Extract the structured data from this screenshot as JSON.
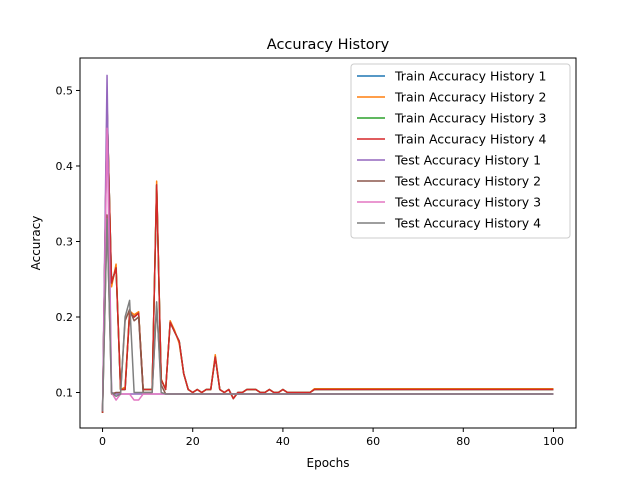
{
  "chart_data": {
    "type": "line",
    "title": "Accuracy History",
    "xlabel": "Epochs",
    "ylabel": "Accuracy",
    "xlim": [
      -5,
      105
    ],
    "ylim": [
      0.053,
      0.543
    ],
    "xticks": [
      0,
      20,
      40,
      60,
      80,
      100
    ],
    "yticks": [
      0.1,
      0.2,
      0.3,
      0.4,
      0.5
    ],
    "grid": false,
    "legend_position": "top-right",
    "series": [
      {
        "name": "Train Accuracy History 1",
        "color": "#1f77b4",
        "points": [
          [
            0,
            0.073
          ],
          [
            1,
            0.48
          ],
          [
            2,
            0.245
          ],
          [
            3,
            0.265
          ],
          [
            4,
            0.104
          ],
          [
            5,
            0.104
          ],
          [
            6,
            0.205
          ],
          [
            7,
            0.2
          ],
          [
            8,
            0.205
          ],
          [
            9,
            0.104
          ],
          [
            10,
            0.104
          ],
          [
            11,
            0.104
          ],
          [
            12,
            0.375
          ],
          [
            13,
            0.117
          ],
          [
            14,
            0.104
          ],
          [
            15,
            0.193
          ],
          [
            16,
            0.18
          ],
          [
            17,
            0.168
          ],
          [
            18,
            0.125
          ],
          [
            19,
            0.104
          ],
          [
            20,
            0.1
          ],
          [
            21,
            0.104
          ],
          [
            22,
            0.1
          ],
          [
            23,
            0.104
          ],
          [
            24,
            0.104
          ],
          [
            25,
            0.147
          ],
          [
            26,
            0.104
          ],
          [
            27,
            0.1
          ],
          [
            28,
            0.104
          ],
          [
            29,
            0.092
          ],
          [
            30,
            0.1
          ],
          [
            31,
            0.1
          ],
          [
            32,
            0.104
          ],
          [
            33,
            0.104
          ],
          [
            34,
            0.104
          ],
          [
            35,
            0.1
          ],
          [
            36,
            0.1
          ],
          [
            37,
            0.104
          ],
          [
            38,
            0.1
          ],
          [
            39,
            0.1
          ],
          [
            40,
            0.104
          ],
          [
            41,
            0.1
          ],
          [
            42,
            0.1
          ],
          [
            43,
            0.1
          ],
          [
            44,
            0.1
          ],
          [
            45,
            0.1
          ],
          [
            46,
            0.1
          ],
          [
            47,
            0.104
          ],
          [
            100,
            0.104
          ]
        ]
      },
      {
        "name": "Train Accuracy History 2",
        "color": "#ff7f0e",
        "points": [
          [
            0,
            0.073
          ],
          [
            1,
            0.485
          ],
          [
            2,
            0.24
          ],
          [
            3,
            0.27
          ],
          [
            4,
            0.104
          ],
          [
            5,
            0.107
          ],
          [
            6,
            0.208
          ],
          [
            7,
            0.203
          ],
          [
            8,
            0.207
          ],
          [
            9,
            0.104
          ],
          [
            10,
            0.104
          ],
          [
            11,
            0.104
          ],
          [
            12,
            0.38
          ],
          [
            13,
            0.118
          ],
          [
            14,
            0.104
          ],
          [
            15,
            0.195
          ],
          [
            16,
            0.182
          ],
          [
            17,
            0.165
          ],
          [
            18,
            0.125
          ],
          [
            19,
            0.104
          ],
          [
            20,
            0.1
          ],
          [
            21,
            0.104
          ],
          [
            22,
            0.1
          ],
          [
            23,
            0.104
          ],
          [
            24,
            0.104
          ],
          [
            25,
            0.15
          ],
          [
            26,
            0.104
          ],
          [
            27,
            0.1
          ],
          [
            28,
            0.104
          ],
          [
            29,
            0.092
          ],
          [
            30,
            0.1
          ],
          [
            31,
            0.1
          ],
          [
            32,
            0.104
          ],
          [
            33,
            0.104
          ],
          [
            34,
            0.104
          ],
          [
            35,
            0.1
          ],
          [
            36,
            0.1
          ],
          [
            37,
            0.104
          ],
          [
            38,
            0.1
          ],
          [
            39,
            0.1
          ],
          [
            40,
            0.104
          ],
          [
            41,
            0.1
          ],
          [
            42,
            0.1
          ],
          [
            43,
            0.1
          ],
          [
            44,
            0.1
          ],
          [
            45,
            0.1
          ],
          [
            46,
            0.1
          ],
          [
            47,
            0.105
          ],
          [
            100,
            0.105
          ]
        ]
      },
      {
        "name": "Train Accuracy History 3",
        "color": "#2ca02c",
        "points": [
          [
            0,
            0.073
          ],
          [
            1,
            0.48
          ],
          [
            2,
            0.245
          ],
          [
            3,
            0.265
          ],
          [
            4,
            0.104
          ],
          [
            5,
            0.104
          ],
          [
            6,
            0.205
          ],
          [
            7,
            0.2
          ],
          [
            8,
            0.205
          ],
          [
            9,
            0.104
          ],
          [
            10,
            0.104
          ],
          [
            11,
            0.104
          ],
          [
            12,
            0.375
          ],
          [
            13,
            0.117
          ],
          [
            14,
            0.104
          ],
          [
            15,
            0.193
          ],
          [
            16,
            0.18
          ],
          [
            17,
            0.168
          ],
          [
            18,
            0.125
          ],
          [
            19,
            0.104
          ],
          [
            20,
            0.1
          ],
          [
            21,
            0.104
          ],
          [
            22,
            0.1
          ],
          [
            23,
            0.104
          ],
          [
            24,
            0.104
          ],
          [
            25,
            0.147
          ],
          [
            26,
            0.104
          ],
          [
            27,
            0.1
          ],
          [
            28,
            0.104
          ],
          [
            29,
            0.092
          ],
          [
            30,
            0.1
          ],
          [
            31,
            0.1
          ],
          [
            32,
            0.104
          ],
          [
            33,
            0.104
          ],
          [
            34,
            0.104
          ],
          [
            35,
            0.1
          ],
          [
            36,
            0.1
          ],
          [
            37,
            0.104
          ],
          [
            38,
            0.1
          ],
          [
            39,
            0.1
          ],
          [
            40,
            0.104
          ],
          [
            41,
            0.1
          ],
          [
            42,
            0.1
          ],
          [
            43,
            0.1
          ],
          [
            44,
            0.1
          ],
          [
            45,
            0.1
          ],
          [
            46,
            0.1
          ],
          [
            47,
            0.104
          ],
          [
            100,
            0.104
          ]
        ]
      },
      {
        "name": "Train Accuracy History 4",
        "color": "#d62728",
        "points": [
          [
            0,
            0.073
          ],
          [
            1,
            0.48
          ],
          [
            2,
            0.245
          ],
          [
            3,
            0.265
          ],
          [
            4,
            0.104
          ],
          [
            5,
            0.104
          ],
          [
            6,
            0.205
          ],
          [
            7,
            0.2
          ],
          [
            8,
            0.205
          ],
          [
            9,
            0.104
          ],
          [
            10,
            0.104
          ],
          [
            11,
            0.104
          ],
          [
            12,
            0.375
          ],
          [
            13,
            0.117
          ],
          [
            14,
            0.104
          ],
          [
            15,
            0.193
          ],
          [
            16,
            0.18
          ],
          [
            17,
            0.168
          ],
          [
            18,
            0.125
          ],
          [
            19,
            0.104
          ],
          [
            20,
            0.1
          ],
          [
            21,
            0.104
          ],
          [
            22,
            0.1
          ],
          [
            23,
            0.104
          ],
          [
            24,
            0.104
          ],
          [
            25,
            0.147
          ],
          [
            26,
            0.104
          ],
          [
            27,
            0.1
          ],
          [
            28,
            0.104
          ],
          [
            29,
            0.092
          ],
          [
            30,
            0.1
          ],
          [
            31,
            0.1
          ],
          [
            32,
            0.104
          ],
          [
            33,
            0.104
          ],
          [
            34,
            0.104
          ],
          [
            35,
            0.1
          ],
          [
            36,
            0.1
          ],
          [
            37,
            0.104
          ],
          [
            38,
            0.1
          ],
          [
            39,
            0.1
          ],
          [
            40,
            0.104
          ],
          [
            41,
            0.1
          ],
          [
            42,
            0.1
          ],
          [
            43,
            0.1
          ],
          [
            44,
            0.1
          ],
          [
            45,
            0.1
          ],
          [
            46,
            0.1
          ],
          [
            47,
            0.104
          ],
          [
            100,
            0.104
          ]
        ]
      },
      {
        "name": "Test Accuracy History 1",
        "color": "#9467bd",
        "points": [
          [
            0,
            0.075
          ],
          [
            1,
            0.52
          ],
          [
            2,
            0.1
          ],
          [
            3,
            0.098
          ],
          [
            4,
            0.098
          ],
          [
            5,
            0.098
          ],
          [
            6,
            0.098
          ],
          [
            7,
            0.098
          ],
          [
            8,
            0.098
          ],
          [
            9,
            0.098
          ],
          [
            10,
            0.098
          ],
          [
            100,
            0.098
          ]
        ]
      },
      {
        "name": "Test Accuracy History 2",
        "color": "#8c564b",
        "points": [
          [
            0,
            0.075
          ],
          [
            1,
            0.335
          ],
          [
            2,
            0.098
          ],
          [
            3,
            0.1
          ],
          [
            4,
            0.1
          ],
          [
            5,
            0.195
          ],
          [
            6,
            0.21
          ],
          [
            7,
            0.195
          ],
          [
            8,
            0.2
          ],
          [
            9,
            0.1
          ],
          [
            10,
            0.1
          ],
          [
            11,
            0.1
          ],
          [
            12,
            0.215
          ],
          [
            13,
            0.11
          ],
          [
            14,
            0.098
          ],
          [
            15,
            0.098
          ],
          [
            100,
            0.098
          ]
        ]
      },
      {
        "name": "Test Accuracy History 3",
        "color": "#e377c2",
        "points": [
          [
            0,
            0.075
          ],
          [
            1,
            0.45
          ],
          [
            2,
            0.1
          ],
          [
            3,
            0.09
          ],
          [
            4,
            0.098
          ],
          [
            5,
            0.098
          ],
          [
            6,
            0.098
          ],
          [
            7,
            0.09
          ],
          [
            8,
            0.09
          ],
          [
            9,
            0.098
          ],
          [
            10,
            0.098
          ],
          [
            11,
            0.098
          ],
          [
            100,
            0.098
          ]
        ]
      },
      {
        "name": "Test Accuracy History 4",
        "color": "#7f7f7f",
        "points": [
          [
            0,
            0.075
          ],
          [
            1,
            0.33
          ],
          [
            2,
            0.1
          ],
          [
            3,
            0.095
          ],
          [
            4,
            0.098
          ],
          [
            5,
            0.2
          ],
          [
            6,
            0.222
          ],
          [
            7,
            0.1
          ],
          [
            8,
            0.1
          ],
          [
            9,
            0.1
          ],
          [
            10,
            0.1
          ],
          [
            11,
            0.1
          ],
          [
            12,
            0.22
          ],
          [
            13,
            0.1
          ],
          [
            14,
            0.098
          ],
          [
            100,
            0.098
          ]
        ]
      }
    ]
  }
}
